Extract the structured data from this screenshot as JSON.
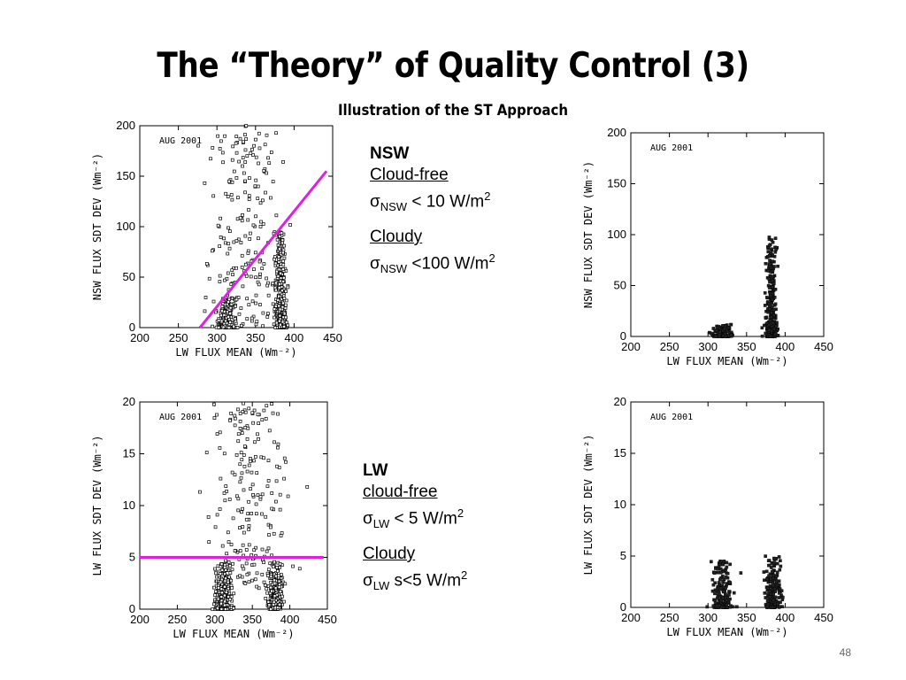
{
  "slide": {
    "title": "The “Theory” of Quality Control (3)",
    "subtitle": "Illustration of the ST Approach",
    "page_number": "48"
  },
  "nsw_block": {
    "heading": "NSW",
    "cloudfree_label": "Cloud-free",
    "cloudfree_sigma": "σ",
    "cloudfree_sub": "NSW",
    "cloudfree_value": " < 10 W/m",
    "cloudfree_sup": "2",
    "cloudy_label": "Cloudy",
    "cloudy_sigma": "σ",
    "cloudy_sub": "NSW",
    "cloudy_value": " <100 W/m",
    "cloudy_sup": "2"
  },
  "lw_block": {
    "heading": "LW",
    "cloudfree_label": "cloud-free",
    "cloudfree_sigma": "σ",
    "cloudfree_sub": "LW",
    "cloudfree_value": " < 5 W/m",
    "cloudfree_sup": "2",
    "cloudy_label": "Cloudy",
    "cloudy_sigma": "σ",
    "cloudy_sub": "LW",
    "cloudy_value": " s<5 W/m",
    "cloudy_sup": "2"
  },
  "chart_data": [
    {
      "type": "scatter",
      "annotation": "AUG 2001",
      "xlabel": "LW FLUX MEAN (Wm⁻²)",
      "ylabel": "NSW FLUX SDT DEV (Wm⁻²)",
      "xlim": [
        200,
        450
      ],
      "ylim": [
        0,
        200
      ],
      "xticks": [
        200,
        250,
        300,
        350,
        400,
        450
      ],
      "yticks": [
        0,
        50,
        100,
        150,
        200
      ],
      "marker": "open-square",
      "clusters": [
        {
          "x_center": 312,
          "x_spread": 10,
          "y_max": 30,
          "count": 160
        },
        {
          "x_center": 382,
          "x_spread": 6,
          "y_max": 95,
          "count": 320
        },
        {
          "x_center": 335,
          "x_spread": 40,
          "y_min": 0,
          "y_max": 200,
          "count": 200
        }
      ],
      "reference_line": {
        "color": "#e020e0",
        "x": [
          278,
          442
        ],
        "y": [
          0,
          155
        ]
      }
    },
    {
      "type": "scatter",
      "annotation": "AUG 2001",
      "xlabel": "LW FLUX MEAN (Wm⁻²)",
      "ylabel": "NSW FLUX SDT DEV (Wm⁻²)",
      "xlim": [
        200,
        450
      ],
      "ylim": [
        0,
        200
      ],
      "xticks": [
        200,
        250,
        300,
        350,
        400,
        450
      ],
      "yticks": [
        0,
        50,
        100,
        150,
        200
      ],
      "marker": "filled",
      "clusters": [
        {
          "x_center": 320,
          "x_spread": 12,
          "y_max": 12,
          "count": 120
        },
        {
          "x_center": 382,
          "x_spread": 6,
          "y_max": 98,
          "count": 300
        }
      ]
    },
    {
      "type": "scatter",
      "annotation": "AUG 2001",
      "xlabel": "LW FLUX MEAN (Wm⁻²)",
      "ylabel": "LW FLUX SDT DEV (Wm⁻²)",
      "xlim": [
        200,
        450
      ],
      "ylim": [
        0,
        20
      ],
      "xticks": [
        200,
        250,
        300,
        350,
        400,
        450
      ],
      "yticks": [
        0,
        5,
        10,
        15,
        20
      ],
      "marker": "open-square",
      "clusters": [
        {
          "x_center": 312,
          "x_spread": 10,
          "y_max": 4.5,
          "count": 260
        },
        {
          "x_center": 380,
          "x_spread": 8,
          "y_max": 4.5,
          "count": 260
        },
        {
          "x_center": 345,
          "x_spread": 40,
          "y_min": 2,
          "y_max": 20,
          "count": 200
        }
      ],
      "reference_line": {
        "color": "#e020e0",
        "x": [
          200,
          445
        ],
        "y": [
          5,
          5
        ]
      }
    },
    {
      "type": "scatter",
      "annotation": "AUG 2001",
      "xlabel": "LW FLUX MEAN (Wm⁻²)",
      "ylabel": "LW FLUX SDT DEV (Wm⁻²)",
      "xlim": [
        200,
        450
      ],
      "ylim": [
        0,
        20
      ],
      "xticks": [
        200,
        250,
        300,
        350,
        400,
        450
      ],
      "yticks": [
        0,
        5,
        10,
        15,
        20
      ],
      "marker": "filled",
      "clusters": [
        {
          "x_center": 318,
          "x_spread": 12,
          "y_max": 4.5,
          "count": 160
        },
        {
          "x_center": 384,
          "x_spread": 8,
          "y_max": 5,
          "count": 200
        }
      ]
    }
  ]
}
